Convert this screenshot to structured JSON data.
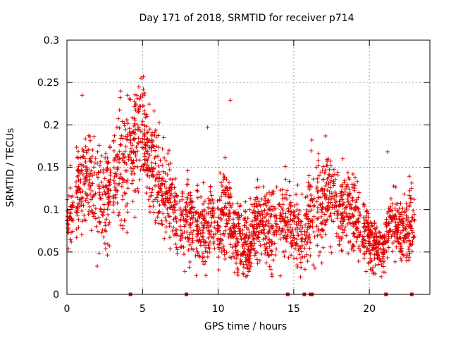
{
  "chart_data": {
    "type": "scatter",
    "title": "Day 171 of 2018, SRMTID for receiver p714",
    "xlabel": "GPS time / hours",
    "ylabel": "SRMTID / TECUs",
    "xlim": [
      0,
      24
    ],
    "ylim": [
      0,
      0.3
    ],
    "xticks": [
      0,
      5,
      10,
      15,
      20
    ],
    "yticks": [
      0,
      0.05,
      0.1,
      0.15,
      0.2,
      0.25,
      0.3
    ],
    "grid": true,
    "marker": "plus",
    "color": "#e00000",
    "trend": {
      "x": [
        0,
        0.5,
        1,
        1.5,
        2,
        2.5,
        3,
        3.5,
        4,
        4.5,
        5,
        5.5,
        6,
        6.5,
        7,
        7.5,
        8,
        8.5,
        9,
        9.5,
        10,
        10.5,
        11,
        11.5,
        12,
        12.5,
        13,
        13.5,
        14,
        14.5,
        15,
        15.5,
        16,
        16.5,
        17,
        17.5,
        18,
        18.5,
        19,
        19.5,
        20,
        20.5,
        21,
        21.5,
        22,
        22.5,
        23
      ],
      "y": [
        0.09,
        0.11,
        0.13,
        0.14,
        0.12,
        0.11,
        0.13,
        0.14,
        0.15,
        0.17,
        0.2,
        0.15,
        0.13,
        0.12,
        0.11,
        0.08,
        0.09,
        0.08,
        0.08,
        0.09,
        0.08,
        0.11,
        0.07,
        0.06,
        0.06,
        0.08,
        0.09,
        0.07,
        0.09,
        0.09,
        0.08,
        0.07,
        0.09,
        0.1,
        0.11,
        0.12,
        0.1,
        0.11,
        0.09,
        0.08,
        0.06,
        0.055,
        0.06,
        0.09,
        0.075,
        0.08,
        0.08
      ],
      "spread": [
        0.03,
        0.03,
        0.035,
        0.035,
        0.04,
        0.04,
        0.04,
        0.045,
        0.045,
        0.045,
        0.035,
        0.035,
        0.035,
        0.035,
        0.03,
        0.03,
        0.03,
        0.03,
        0.035,
        0.03,
        0.03,
        0.035,
        0.025,
        0.025,
        0.025,
        0.03,
        0.03,
        0.03,
        0.03,
        0.03,
        0.03,
        0.03,
        0.035,
        0.04,
        0.04,
        0.04,
        0.035,
        0.03,
        0.03,
        0.03,
        0.025,
        0.02,
        0.02,
        0.03,
        0.025,
        0.03,
        0.03
      ]
    },
    "gaps": [
      [
        0.42,
        0.6
      ],
      [
        2.9,
        3.05
      ],
      [
        5.5,
        5.55
      ],
      [
        7.3,
        7.45
      ],
      [
        8.4,
        8.5
      ],
      [
        9.85,
        9.95
      ],
      [
        13.9,
        14.0
      ],
      [
        15.6,
        15.7
      ],
      [
        16.4,
        16.5
      ],
      [
        19.4,
        19.5
      ],
      [
        22.5,
        22.55
      ]
    ],
    "spikes": [
      {
        "x": 1.0,
        "y": 0.235
      },
      {
        "x": 3.55,
        "y": 0.24
      },
      {
        "x": 4.0,
        "y": 0.235
      },
      {
        "x": 4.75,
        "y": 0.245
      },
      {
        "x": 4.9,
        "y": 0.255
      },
      {
        "x": 5.05,
        "y": 0.257
      },
      {
        "x": 5.1,
        "y": 0.235
      },
      {
        "x": 10.8,
        "y": 0.229
      },
      {
        "x": 9.3,
        "y": 0.197
      },
      {
        "x": 17.1,
        "y": 0.187
      },
      {
        "x": 16.2,
        "y": 0.182
      },
      {
        "x": 21.2,
        "y": 0.168
      }
    ],
    "zero_markers": [
      4.2,
      7.9,
      14.6,
      15.7,
      16.1,
      16.2,
      21.1,
      22.8
    ],
    "point_count": 2600
  }
}
